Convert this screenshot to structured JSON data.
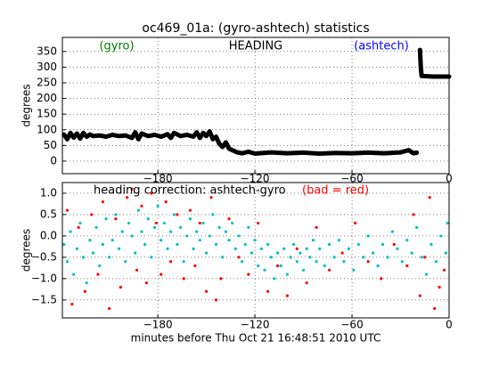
{
  "chart_data": [
    {
      "type": "line",
      "title": "oc469_01a: (gyro-ashtech) statistics",
      "annotations": [
        {
          "text": "(gyro)",
          "color": "#008000"
        },
        {
          "text": "HEADING",
          "color": "#000000"
        },
        {
          "text": "(ashtech)",
          "color": "#0000ff"
        }
      ],
      "ylabel": "degrees",
      "x": [
        -238,
        -236,
        -234,
        -232,
        -230,
        -228,
        -226,
        -224,
        -222,
        -220,
        -216,
        -212,
        -208,
        -204,
        -200,
        -196,
        -194,
        -192,
        -190,
        -186,
        -182,
        -178,
        -174,
        -172,
        -170,
        -166,
        -162,
        -158,
        -156,
        -154,
        -152,
        -150,
        -148,
        -146,
        -144,
        -142,
        -140,
        -138,
        -136,
        -134,
        -131,
        -128,
        -124,
        -120,
        -110,
        -100,
        -90,
        -80,
        -70,
        -60,
        -50,
        -40,
        -30,
        -25,
        -22,
        -20,
        -19,
        -18,
        -17.5,
        -17,
        -10,
        0
      ],
      "series": [
        {
          "color": "#000000",
          "values": [
            85,
            70,
            90,
            75,
            88,
            72,
            90,
            78,
            85,
            80,
            82,
            78,
            84,
            80,
            82,
            74,
            92,
            70,
            88,
            80,
            84,
            78,
            86,
            74,
            90,
            80,
            84,
            78,
            92,
            74,
            90,
            80,
            95,
            70,
            78,
            55,
            45,
            60,
            40,
            35,
            28,
            25,
            30,
            24,
            28,
            25,
            27,
            24,
            26,
            25,
            27,
            25,
            28,
            35,
            25,
            27,
            null,
            355,
            300,
            272,
            270,
            270
          ]
        }
      ],
      "xlim": [
        -239,
        0
      ],
      "xticks": [
        {
          "value": -180,
          "label": "−180"
        },
        {
          "value": -120,
          "label": "−120"
        },
        {
          "value": -60,
          "label": "−60"
        },
        0
      ],
      "ylim": [
        -40,
        395
      ],
      "yticks": [
        0,
        50,
        100,
        150,
        200,
        250,
        300,
        350
      ],
      "grid": true
    },
    {
      "type": "scatter",
      "annotations": [
        {
          "text": "heading correction: ashtech-gyro",
          "color": "#000000"
        },
        {
          "text": "(bad = red)",
          "color": "#ff0000"
        }
      ],
      "ylabel": "degrees",
      "xlabel": "minutes before Thu Oct 21 16:48:51 2010 UTC",
      "series": [
        {
          "color": "#00bfbf",
          "x": [
            -238,
            -236,
            -234,
            -232,
            -230,
            -228,
            -226,
            -224,
            -222,
            -220,
            -218,
            -216,
            -214,
            -212,
            -210,
            -208,
            -206,
            -204,
            -202,
            -200,
            -198,
            -196,
            -194,
            -192,
            -190,
            -188,
            -186,
            -184,
            -182,
            -180,
            -178,
            -176,
            -174,
            -172,
            -170,
            -168,
            -166,
            -164,
            -162,
            -160,
            -158,
            -156,
            -154,
            -152,
            -150,
            -148,
            -146,
            -144,
            -142,
            -140,
            -138,
            -136,
            -134,
            -132,
            -130,
            -128,
            -126,
            -124,
            -122,
            -120,
            -118,
            -116,
            -114,
            -112,
            -110,
            -108,
            -106,
            -104,
            -102,
            -100,
            -98,
            -96,
            -94,
            -92,
            -90,
            -88,
            -86,
            -84,
            -82,
            -80,
            -77,
            -74,
            -71,
            -68,
            -65,
            -62,
            -59,
            -56,
            -53,
            -50,
            -47,
            -44,
            -41,
            -38,
            -35,
            -32,
            -29,
            -26,
            -23,
            -20,
            -17,
            -14,
            -11,
            -8,
            -5,
            -2,
            -1
          ],
          "values": [
            -0.2,
            -0.6,
            0.1,
            -0.9,
            -0.3,
            0.3,
            -0.5,
            -1.1,
            -0.1,
            -0.4,
            0.2,
            -0.7,
            -0.2,
            0.4,
            -0.5,
            -0.1,
            0.5,
            -0.3,
            0.1,
            -0.6,
            0.3,
            0.0,
            -0.4,
            0.6,
            0.1,
            -0.2,
            0.4,
            -0.5,
            0.2,
            0.7,
            -0.1,
            0.3,
            -0.3,
            0.1,
            0.5,
            -0.2,
            0.2,
            -0.6,
            0.0,
            0.4,
            -0.3,
            0.1,
            -0.1,
            0.3,
            -0.4,
            0.0,
            0.5,
            -0.2,
            0.2,
            -0.5,
            0.1,
            -0.1,
            0.3,
            -0.3,
            0.0,
            -0.6,
            -0.2,
            0.2,
            -0.4,
            -0.1,
            -0.7,
            -0.3,
            -0.8,
            -0.2,
            -0.5,
            -1.0,
            -0.4,
            -0.7,
            -0.3,
            -0.9,
            -0.5,
            -0.2,
            -0.6,
            -0.4,
            -0.8,
            -0.3,
            -0.5,
            -0.1,
            -0.6,
            -0.3,
            -0.7,
            -0.2,
            -0.5,
            -0.1,
            -0.6,
            -0.3,
            -0.8,
            -0.2,
            -0.5,
            0.0,
            -0.4,
            -0.7,
            -0.2,
            -0.5,
            0.1,
            -0.3,
            -0.6,
            -0.1,
            -0.4,
            0.2,
            -0.5,
            -0.9,
            -0.2,
            -0.6,
            0.0,
            -0.4,
            0.3
          ]
        },
        {
          "color": "#ff0000",
          "x": [
            -236,
            -233,
            -229,
            -225,
            -221,
            -217,
            -214,
            -210,
            -206,
            -203,
            -199,
            -196,
            -193,
            -190,
            -187,
            -184,
            -181,
            -178,
            -175,
            -172,
            -168,
            -164,
            -160,
            -157,
            -154,
            -150,
            -147,
            -144,
            -141,
            -136,
            -130,
            -124,
            -118,
            -112,
            -106,
            -100,
            -94,
            -88,
            -82,
            -74,
            -66,
            -58,
            -50,
            -42,
            -34,
            -26,
            -22,
            -18,
            -15,
            -12,
            -9,
            -6,
            -3
          ],
          "values": [
            0.6,
            -1.6,
            0.2,
            -1.3,
            0.5,
            -0.9,
            0.8,
            -1.7,
            0.4,
            -1.2,
            0.9,
            1.1,
            -0.8,
            0.7,
            -1.1,
            1.0,
            0.3,
            -0.9,
            0.8,
            -0.6,
            0.5,
            -1.0,
            0.6,
            -0.7,
            0.3,
            -1.3,
            0.9,
            -1.5,
            -1.0,
            0.4,
            -0.5,
            -0.9,
            0.3,
            -1.3,
            -0.7,
            -1.4,
            -0.3,
            -1.1,
            0.2,
            -0.8,
            -0.4,
            0.3,
            -0.6,
            -1.0,
            -0.2,
            -0.7,
            0.5,
            -1.4,
            -0.5,
            0.9,
            -1.7,
            -1.2,
            -0.8
          ]
        }
      ],
      "xlim": [
        -239,
        0
      ],
      "xticks": [
        {
          "value": -180,
          "label": "−180"
        },
        {
          "value": -120,
          "label": "−120"
        },
        {
          "value": -60,
          "label": "−60"
        },
        0
      ],
      "ylim": [
        -1.92,
        1.25
      ],
      "yticks": [
        {
          "value": -1.5,
          "label": "−1.5"
        },
        {
          "value": -1.0,
          "label": "−1.0"
        },
        {
          "value": -0.5,
          "label": "−0.5"
        },
        {
          "value": 0.0,
          "label": "0.0"
        },
        0.5,
        {
          "value": 1.0,
          "label": "1.0"
        }
      ],
      "grid": true
    }
  ]
}
